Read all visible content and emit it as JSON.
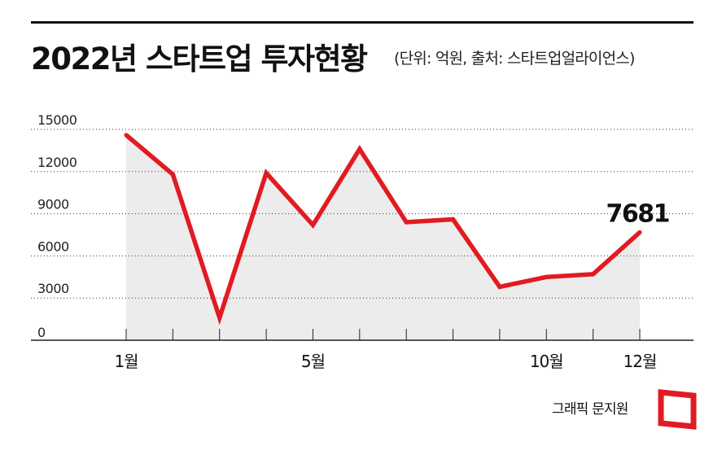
{
  "header": {
    "title": "2022년 스타트업 투자현황",
    "subtitle": "(단위: 억원, 출처: 스타트업얼라이언스)"
  },
  "footer": {
    "credit": "그래픽 문지원"
  },
  "colors": {
    "line": "#e01b22",
    "area": "#ececec",
    "grid": "#333333",
    "logo": "#e01b22"
  },
  "chart_data": {
    "type": "area",
    "title": "2022년 스타트업 투자현황",
    "subtitle": "(단위: 억원, 출처: 스타트업얼라이언스)",
    "x": [
      1,
      2,
      3,
      4,
      5,
      6,
      7,
      8,
      9,
      10,
      11,
      12
    ],
    "x_tick_labels": [
      {
        "x": 1,
        "label": "1월"
      },
      {
        "x": 5,
        "label": "5월"
      },
      {
        "x": 10,
        "label": "10월"
      },
      {
        "x": 12,
        "label": "12월"
      }
    ],
    "values": [
      14600,
      11800,
      1600,
      11900,
      8200,
      13600,
      8400,
      8600,
      3800,
      4500,
      4700,
      7681
    ],
    "y_ticks": [
      0,
      3000,
      6000,
      9000,
      12000,
      15000
    ],
    "ylim": [
      0,
      15000
    ],
    "xlim": [
      1,
      12
    ],
    "grid": true,
    "grid_style": "dotted",
    "legend": "none",
    "annotations": [
      {
        "x": 12,
        "label": "7681"
      }
    ]
  }
}
